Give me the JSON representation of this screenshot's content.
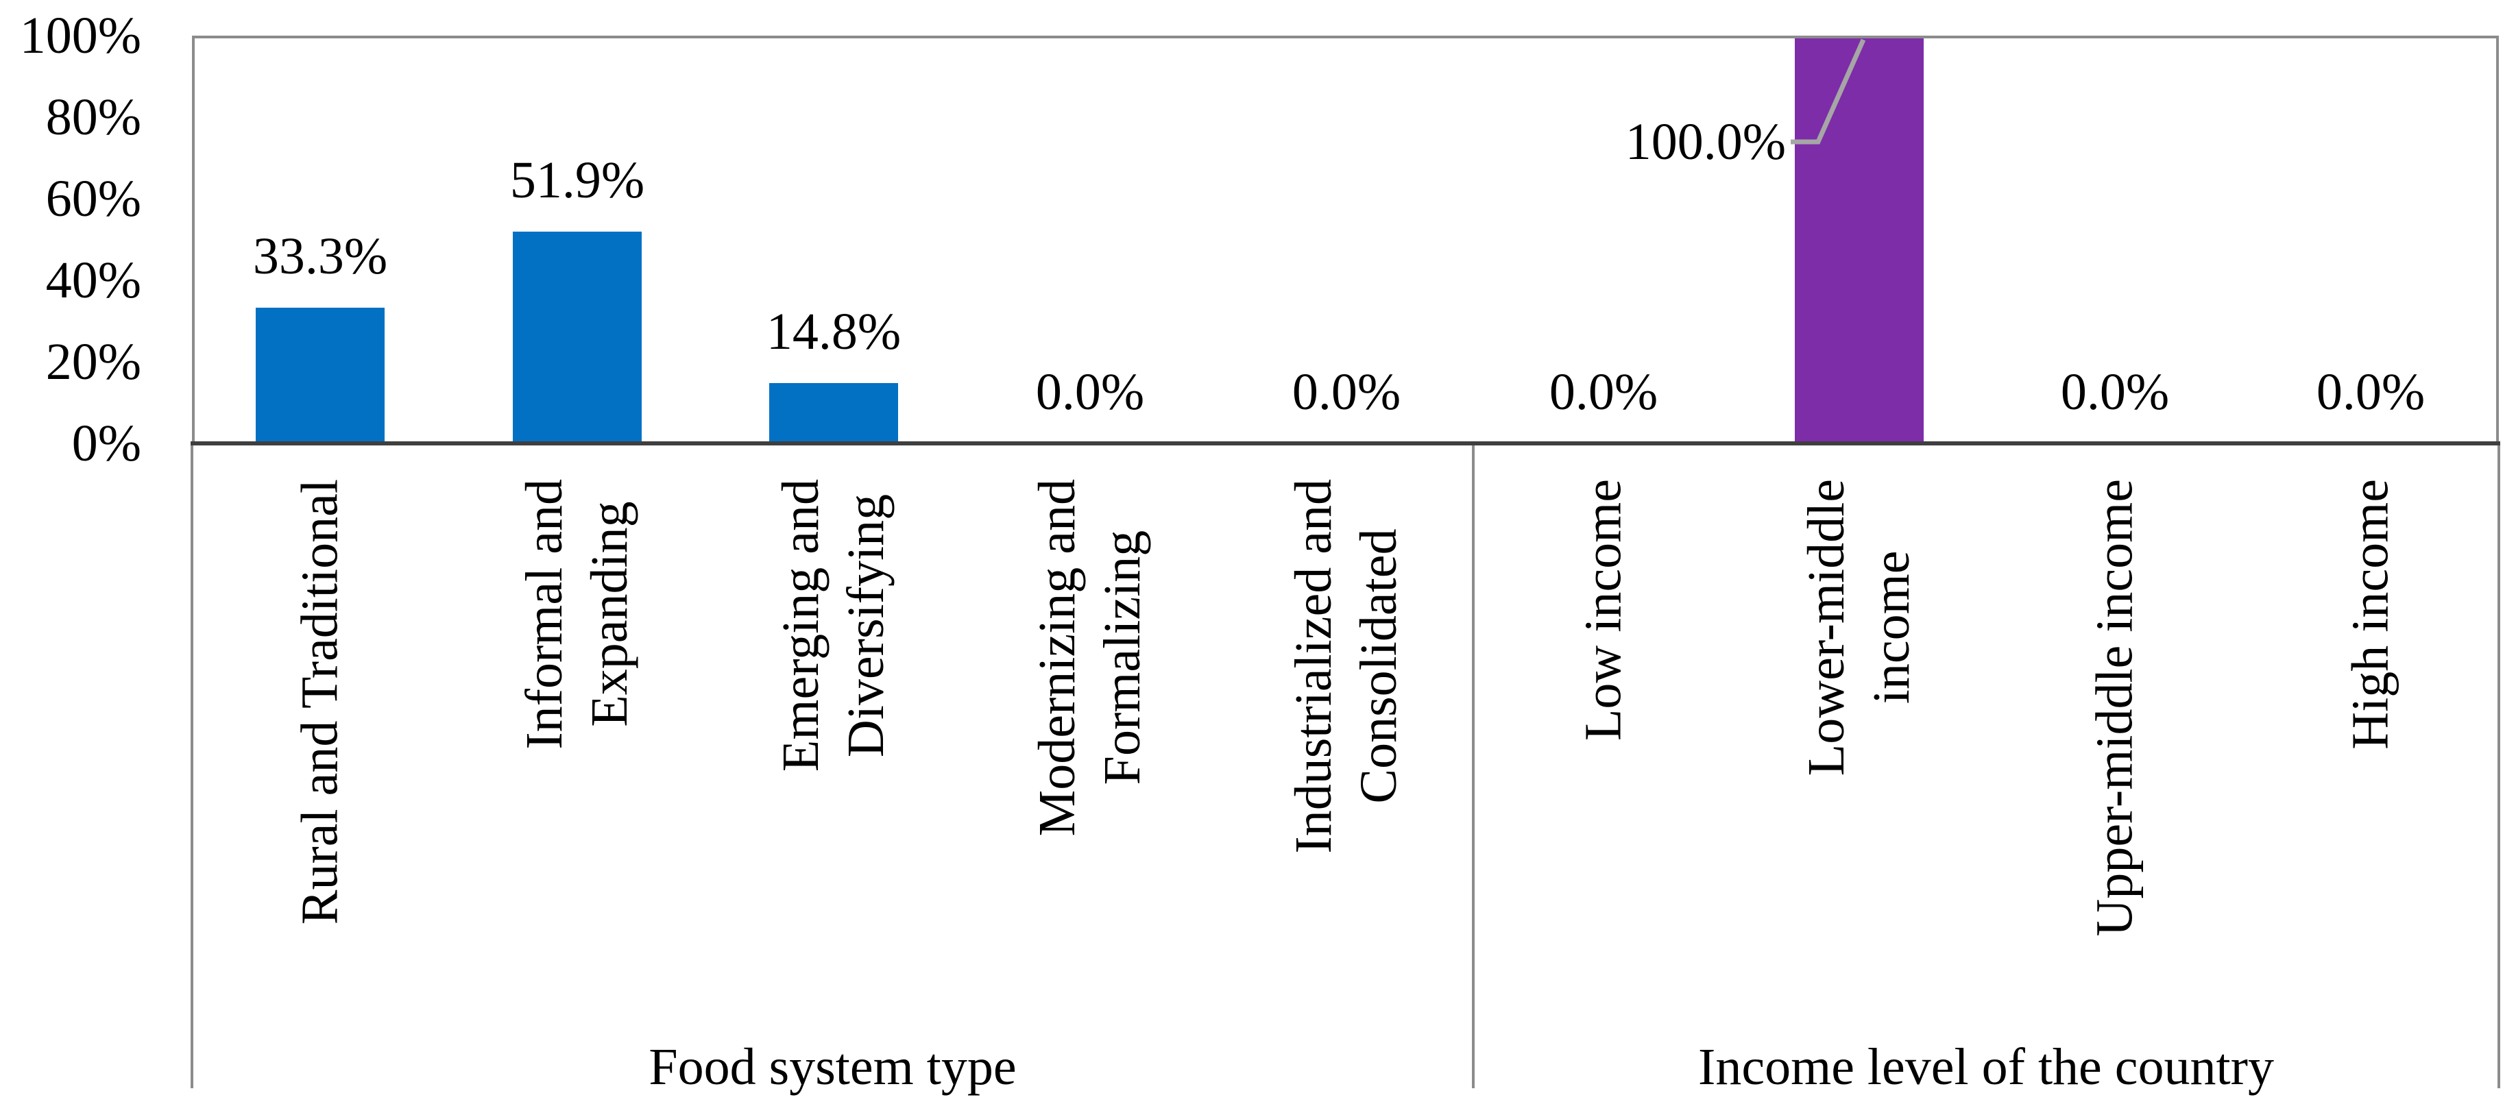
{
  "chart_data": {
    "type": "bar",
    "title": "",
    "xlabel": "",
    "ylabel": "",
    "ylim": [
      0,
      100
    ],
    "yticks": [
      "100%",
      "80%",
      "60%",
      "40%",
      "20%",
      "0%"
    ],
    "grid": false,
    "legend": false,
    "groups": [
      {
        "group_label": "Food system type",
        "bar_color": "#0271C4",
        "categories": [
          "Rural and Traditional",
          "Informal and\nExpanding",
          "Emerging and\nDiversifying",
          "Modernizing and\nFormalizing",
          "Industrialized and\nConsolidated"
        ],
        "values": [
          33.3,
          51.9,
          14.8,
          0.0,
          0.0
        ],
        "data_labels": [
          "33.3%",
          "51.9%",
          "14.8%",
          "0.0%",
          "0.0%"
        ]
      },
      {
        "group_label": "Income level of the country",
        "bar_color": "#7D2DA8",
        "categories": [
          "Low income",
          "Lower-middle\nincome",
          "Upper-middle income",
          "High income"
        ],
        "values": [
          0.0,
          100.0,
          0.0,
          0.0
        ],
        "data_labels": [
          "0.0%",
          "100.0%",
          "0.0%",
          "0.0%"
        ]
      }
    ],
    "annotations": {
      "callout_label": "100.0%",
      "callout_target_category": "Lower-middle income",
      "leader_line_color": "#A6A6A6"
    },
    "colors": {
      "axis_line": "#3F3F3F",
      "plot_border": "#8C8C8C",
      "text": "#000000"
    }
  }
}
